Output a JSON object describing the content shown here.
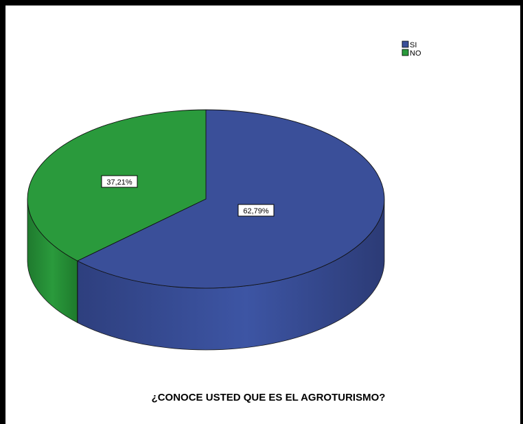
{
  "chart_data": {
    "type": "pie",
    "title": "¿CONOCE USTED QUE ES EL AGROTURISMO?",
    "categories": [
      "SI",
      "NO"
    ],
    "values": [
      62.79,
      37.21
    ],
    "value_labels": [
      "62,79%",
      "37,21%"
    ],
    "colors": [
      "#3a4f99",
      "#2a9a3c"
    ],
    "legend": {
      "placement": "top-right",
      "entries": [
        "SI",
        "NO"
      ]
    },
    "style": "3d"
  }
}
